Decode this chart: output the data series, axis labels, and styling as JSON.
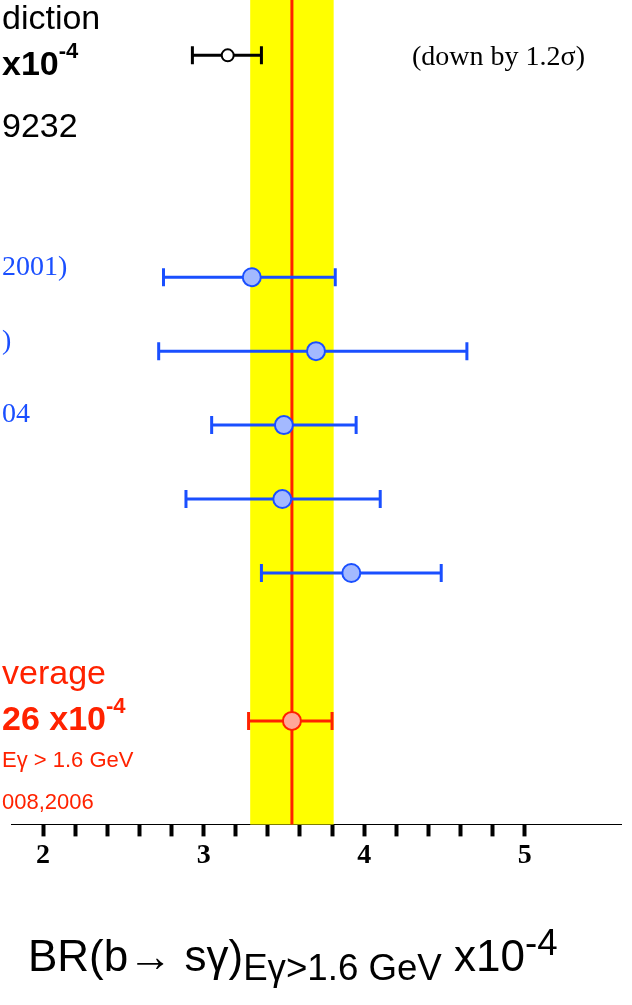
{
  "chart_data": {
    "type": "scatter",
    "orientation": "horizontal",
    "marker": "circle",
    "legend": false,
    "categories": [
      "diction\nx10$^{-4}$\n9232",
      null,
      null,
      "2001)",
      ")",
      "04",
      null,
      null,
      null,
      "verage\n26 x10$^{-4}$\nEγ > 1.6 GeV\n008,2006",
      null
    ],
    "series": [
      {
        "color": "#000000",
        "values": [
          3.15,
          null,
          null,
          null,
          null,
          null,
          null,
          null,
          null,
          null,
          null
        ],
        "errors": [
          [
            2.93,
            3.36
          ],
          null,
          null,
          null,
          null,
          null,
          null,
          null,
          null,
          null,
          null
        ]
      },
      {
        "color": "#1a4fff",
        "values": [
          null,
          null,
          null,
          3.3,
          3.7,
          3.5,
          3.49,
          3.92,
          null,
          null,
          null
        ],
        "errors": [
          null,
          null,
          null,
          [
            2.75,
            3.82
          ],
          [
            2.72,
            4.64
          ],
          [
            3.05,
            3.95
          ],
          [
            2.89,
            4.1
          ],
          [
            3.36,
            4.48
          ],
          null,
          null,
          null
        ]
      },
      {
        "color": "#ff2200",
        "values": [
          null,
          null,
          null,
          null,
          null,
          null,
          null,
          null,
          null,
          3.55,
          null
        ],
        "errors": [
          null,
          null,
          null,
          null,
          null,
          null,
          null,
          null,
          null,
          [
            3.28,
            3.8
          ],
          null
        ]
      }
    ],
    "xlim": [
      1.8,
      5.6
    ],
    "xticks": [
      2,
      {
        "value": 2.2,
        "label": null
      },
      {
        "value": 2.4,
        "label": null
      },
      {
        "value": 2.6,
        "label": null
      },
      {
        "value": 2.8,
        "label": null
      },
      3,
      {
        "value": 3.2,
        "label": null
      },
      {
        "value": 3.4,
        "label": null
      },
      {
        "value": 3.6,
        "label": null
      },
      {
        "value": 3.8,
        "label": null
      },
      4,
      {
        "value": 4.2,
        "label": null
      },
      {
        "value": 4.4,
        "label": null
      },
      {
        "value": 4.6,
        "label": null
      },
      {
        "value": 4.8,
        "label": null
      },
      5
    ],
    "bands": [
      {
        "axis": "x",
        "from": 3.29,
        "to": 3.81,
        "color": "#ffff00"
      }
    ],
    "ref_lines": [
      {
        "axis": "x",
        "value": 3.55,
        "color": "#ff2200"
      }
    ],
    "xlabel": "BR(b→ sγ)$_{Eγ>1.6 GeV}$ x10$^{-4}$",
    "annotations": [
      "(down by 1.2σ)"
    ]
  }
}
